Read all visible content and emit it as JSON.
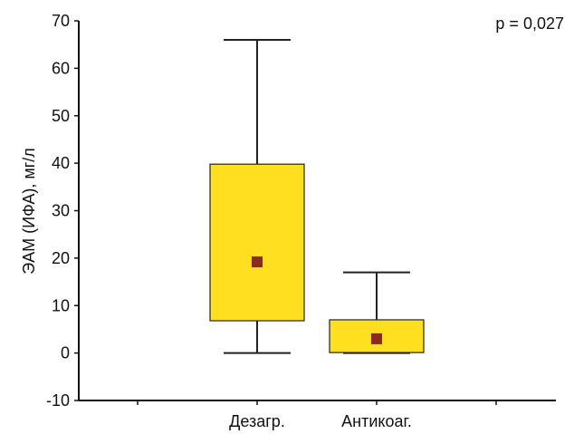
{
  "chart_data": {
    "type": "box",
    "ylabel": "ЭАМ (ИФА), мг/л",
    "ylim": [
      -10,
      70
    ],
    "yticks": [
      -10,
      0,
      10,
      20,
      30,
      40,
      50,
      60,
      70
    ],
    "categories": [
      "Дезагр.",
      "Антикоаг."
    ],
    "boxes": [
      {
        "category": "Дезагр.",
        "whisker_min": 0,
        "q1": 6.8,
        "q3": 39.8,
        "whisker_max": 66,
        "median": 19.2
      },
      {
        "category": "Антикоаг.",
        "whisker_min": 0,
        "q1": 0.1,
        "q3": 7,
        "whisker_max": 17,
        "median": 3
      }
    ],
    "annotation": "p = 0,027",
    "grid": false,
    "legend": "none",
    "colors": {
      "box_fill": "#FFDF1F",
      "box_stroke": "#222222",
      "median_marker": "#8B2A1E",
      "axis": "#111111"
    }
  }
}
